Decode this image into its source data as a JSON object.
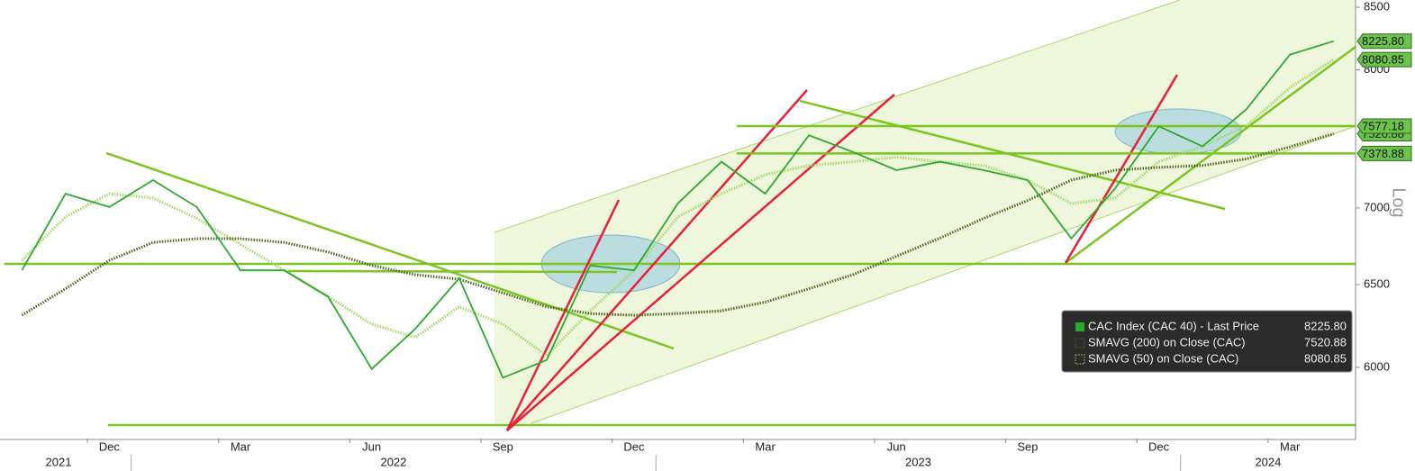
{
  "chart_data": {
    "type": "line",
    "log_scale": true,
    "ylim": [
      5600,
      8560
    ],
    "yticks": [
      6000,
      6500,
      7000,
      8000,
      8500
    ],
    "y_axis_label": "Log",
    "xlim": [
      "2021-10",
      "2024-04"
    ],
    "xticks": [
      {
        "value": "2021-12",
        "label": "Dec"
      },
      {
        "value": "2022-03",
        "label": "Mar"
      },
      {
        "value": "2022-06",
        "label": "Jun"
      },
      {
        "value": "2022-09",
        "label": "Sep"
      },
      {
        "value": "2022-12",
        "label": "Dec"
      },
      {
        "value": "2023-03",
        "label": "Mar"
      },
      {
        "value": "2023-06",
        "label": "Jun"
      },
      {
        "value": "2023-09",
        "label": "Sep"
      },
      {
        "value": "2023-12",
        "label": "Dec"
      },
      {
        "value": "2024-03",
        "label": "Mar"
      }
    ],
    "years": [
      "2021",
      "2022",
      "2023",
      "2024"
    ],
    "x": [
      "2021-10",
      "2021-11",
      "2021-12",
      "2022-01",
      "2022-02",
      "2022-03",
      "2022-04",
      "2022-05",
      "2022-06",
      "2022-07",
      "2022-08",
      "2022-09",
      "2022-10",
      "2022-11",
      "2022-12",
      "2023-01",
      "2023-02",
      "2023-03",
      "2023-04",
      "2023-05",
      "2023-06",
      "2023-07",
      "2023-08",
      "2023-09",
      "2023-10",
      "2023-11",
      "2023-12",
      "2024-01",
      "2024-02",
      "2024-03",
      "2024-04"
    ],
    "series": [
      {
        "name": "CAC Index (CAC 40) - Last Price",
        "color": "#2ea82e",
        "style": "solid",
        "last": {
          "value": 8225.8,
          "label": "8225.80"
        },
        "values": [
          6590,
          7097,
          7006,
          7191,
          7006,
          6590,
          6590,
          6425,
          5990,
          6228,
          6540,
          5940,
          6042,
          6621,
          6590,
          7030,
          7320,
          7097,
          7510,
          7390,
          7260,
          7320,
          7260,
          7191,
          6796,
          7133,
          7575,
          7430,
          7700,
          8120,
          8225.8
        ]
      },
      {
        "name": "SMAVG (200)  on Close (CAC)",
        "color": "#4f6b1f",
        "style": "dotted",
        "last": {
          "value": 7520.88,
          "label": "7520.88"
        },
        "values": [
          6310,
          6474,
          6654,
          6770,
          6795,
          6795,
          6770,
          6708,
          6621,
          6562,
          6533,
          6448,
          6362,
          6320,
          6310,
          6320,
          6337,
          6390,
          6474,
          6562,
          6680,
          6800,
          6930,
          7050,
          7191,
          7260,
          7280,
          7293,
          7340,
          7426,
          7520.88
        ]
      },
      {
        "name": "SMAVG (50)  on Close (CAC)",
        "color": "#a6d96a",
        "style": "dotted",
        "last": {
          "value": 8080.85,
          "label": "8080.85"
        },
        "values": [
          6654,
          6940,
          7097,
          7067,
          6930,
          6758,
          6590,
          6425,
          6256,
          6176,
          6362,
          6256,
          6068,
          6337,
          6590,
          6940,
          7097,
          7229,
          7293,
          7320,
          7353,
          7320,
          7293,
          7191,
          7030,
          7067,
          7320,
          7430,
          7578,
          7864,
          8080.85
        ]
      }
    ],
    "levels": [
      {
        "value": 7577.18,
        "label": "7577.18"
      },
      {
        "value": 7378.88,
        "label": "7378.88"
      }
    ],
    "level_color": "#7cc520"
  }
}
